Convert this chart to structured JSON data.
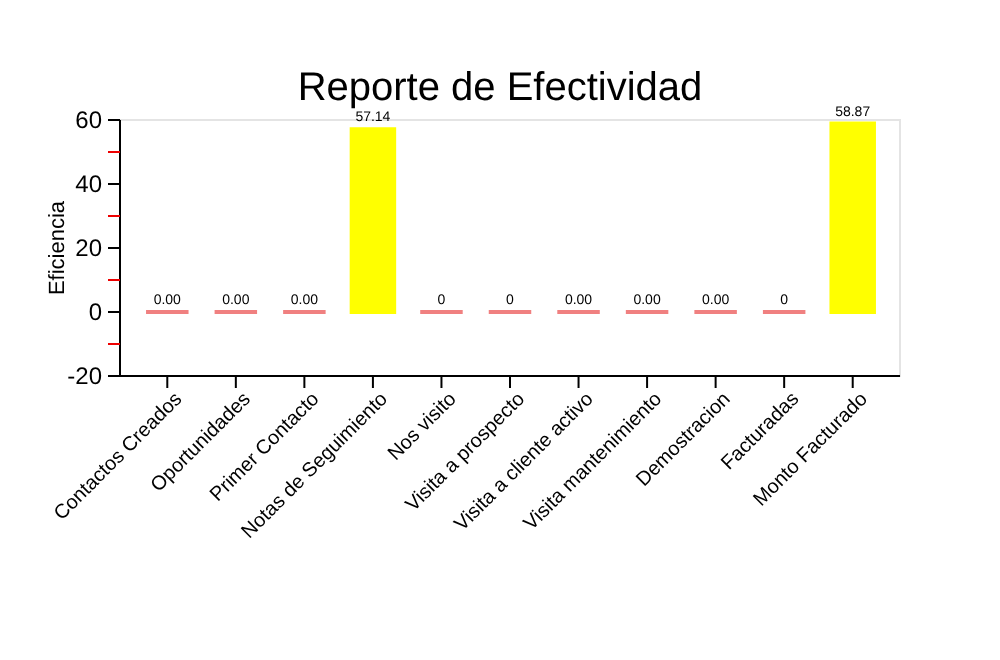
{
  "chart_data": {
    "type": "bar",
    "title": "Reporte de Efectividad",
    "ylabel": "Eficiencia",
    "categories": [
      "Contactos Creados",
      "Oportunidades",
      "Primer Contacto",
      "Notas de Seguimiento",
      "Nos visito",
      "Visita a prospecto",
      "Visita a cliente activo",
      "Visita mantenimiento",
      "Demostracion",
      "Facturadas",
      "Monto Facturado"
    ],
    "values": [
      0,
      0,
      0,
      57.14,
      0,
      0,
      0,
      0,
      0,
      0,
      58.87
    ],
    "colors": [
      "#f08080",
      "#f08080",
      "#f08080",
      "#ffff00",
      "#f08080",
      "#f08080",
      "#f08080",
      "#f08080",
      "#f08080",
      "#f08080",
      "#ffff00"
    ],
    "value_labels": [
      "0.00",
      "0.00",
      "0.00",
      "57.14",
      "0",
      "0",
      "0.00",
      "0.00",
      "0.00",
      "0",
      "58.87"
    ],
    "ylim": [
      -20,
      60
    ],
    "yticks": [
      -20,
      {
        "value": -10,
        "label": null
      },
      0,
      {
        "value": 10,
        "label": null
      },
      20,
      {
        "value": 30,
        "label": null
      },
      40,
      {
        "value": 50,
        "label": null
      },
      60
    ],
    "grid": false
  }
}
